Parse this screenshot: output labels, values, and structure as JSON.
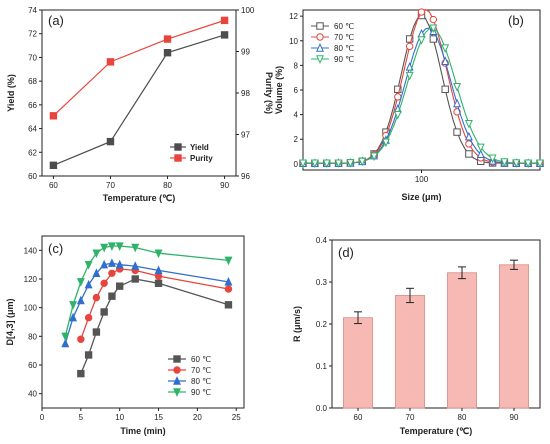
{
  "chart_data": [
    {
      "id": "a",
      "type": "line",
      "panel_label": "(a)",
      "xlabel": "Temperature (℃)",
      "ylabel": "Yield (%)",
      "y2label": "Purity (%)",
      "xlim": [
        58,
        92
      ],
      "ylim": [
        60,
        74
      ],
      "y2lim": [
        96,
        100
      ],
      "xticks": [
        60,
        70,
        80,
        90
      ],
      "yticks": [
        60,
        62,
        64,
        66,
        68,
        70,
        72,
        74
      ],
      "y2ticks": [
        96,
        97,
        98,
        99,
        100
      ],
      "legend_position": "lower-right",
      "series": [
        {
          "name": "Yield",
          "axis": "left",
          "color": "#4d4d4d",
          "marker": "square",
          "x": [
            60,
            70,
            80,
            90
          ],
          "y": [
            60.9,
            62.9,
            70.4,
            71.9
          ]
        },
        {
          "name": "Purity",
          "axis": "right",
          "color": "#e8453c",
          "marker": "square",
          "x": [
            60,
            70,
            80,
            90
          ],
          "y": [
            97.45,
            98.75,
            99.3,
            99.75
          ]
        }
      ]
    },
    {
      "id": "b",
      "type": "line",
      "panel_label": "(b)",
      "xlabel": "Size (μm)",
      "ylabel": "Volume (%)",
      "xscale": "log",
      "xlim": [
        10,
        1000
      ],
      "ylim": [
        -0.5,
        12.5
      ],
      "xticks": [
        100
      ],
      "xticklabels": [
        "100"
      ],
      "yticks": [
        0,
        2,
        4,
        6,
        8,
        10,
        12
      ],
      "legend_position": "top-left",
      "series": [
        {
          "name": "60 ℃",
          "color": "#555555",
          "marker": "square",
          "mean": 100,
          "peak": 12.0,
          "sigma": 0.17
        },
        {
          "name": "70 ℃",
          "color": "#e8453c",
          "marker": "circle",
          "mean": 108,
          "peak": 12.5,
          "sigma": 0.18
        },
        {
          "name": "80 ℃",
          "color": "#2f6fcf",
          "marker": "triangle",
          "mean": 114,
          "peak": 11.0,
          "sigma": 0.19
        },
        {
          "name": "90 ℃",
          "color": "#2fb36a",
          "marker": "triangle-down",
          "mean": 122,
          "peak": 11.0,
          "sigma": 0.2
        }
      ]
    },
    {
      "id": "c",
      "type": "line",
      "panel_label": "(c)",
      "xlabel": "Time (min)",
      "ylabel": "D[4,3] (μm)",
      "xlim": [
        0,
        26
      ],
      "ylim": [
        30,
        150
      ],
      "xticks": [
        0,
        5,
        10,
        15,
        20,
        25
      ],
      "yticks": [
        40,
        60,
        80,
        100,
        120,
        140
      ],
      "legend_position": "lower-right",
      "series": [
        {
          "name": "60 ℃",
          "color": "#555555",
          "marker": "square",
          "x": [
            5,
            6,
            7,
            8,
            9,
            10,
            12,
            15,
            24
          ],
          "y": [
            54,
            67,
            83,
            97,
            108,
            115,
            120,
            117,
            102
          ]
        },
        {
          "name": "70 ℃",
          "color": "#e8453c",
          "marker": "circle",
          "x": [
            5,
            6,
            7,
            8,
            9,
            10,
            12,
            15,
            24
          ],
          "y": [
            78,
            93,
            107,
            117,
            124,
            127,
            126,
            122,
            113
          ]
        },
        {
          "name": "80 ℃",
          "color": "#2f6fcf",
          "marker": "triangle",
          "x": [
            3,
            4,
            5,
            6,
            7,
            8,
            9,
            10,
            12,
            15,
            24
          ],
          "y": [
            75,
            93,
            105,
            116,
            124,
            130,
            131,
            130,
            129,
            126,
            118
          ]
        },
        {
          "name": "90 ℃",
          "color": "#2fb36a",
          "marker": "triangle-down",
          "x": [
            3,
            4,
            5,
            6,
            7,
            8,
            9,
            10,
            12,
            15,
            24
          ],
          "y": [
            80,
            102,
            118,
            130,
            138,
            142,
            143,
            143,
            142,
            138,
            133
          ]
        }
      ]
    },
    {
      "id": "d",
      "type": "bar",
      "panel_label": "(d)",
      "xlabel": "Temperature (℃)",
      "ylabel": "R (μm/s)",
      "categories": [
        "60",
        "70",
        "80",
        "90"
      ],
      "values": [
        0.215,
        0.268,
        0.322,
        0.341
      ],
      "errors": [
        0.014,
        0.017,
        0.014,
        0.011
      ],
      "ylim": [
        0,
        0.4
      ],
      "yticks": [
        0.0,
        0.1,
        0.2,
        0.3,
        0.4
      ],
      "yticklabels": [
        "0.0",
        "0.1",
        "0.2",
        "0.3",
        "0.4"
      ],
      "bar_color": "#f7b9b4",
      "bar_edge": "#d88c86"
    }
  ]
}
